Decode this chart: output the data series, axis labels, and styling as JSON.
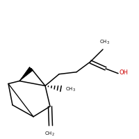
{
  "bg_color": "#ffffff",
  "bond_color": "#000000",
  "oh_color": "#cc0000",
  "figsize": [
    2.0,
    2.0
  ],
  "dpi": 100,
  "lw": 1.1
}
